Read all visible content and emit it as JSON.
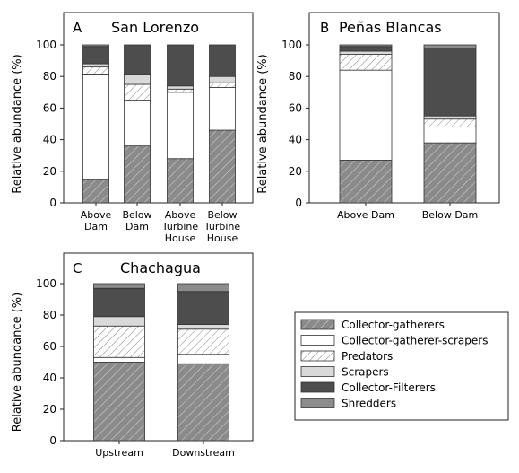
{
  "chart_data": [
    {
      "type": "bar",
      "stacked": true,
      "panel": "A",
      "title": "San Lorenzo",
      "ylabel": "Relative abundance (%)",
      "ylim": [
        0,
        100
      ],
      "yticks": [
        "0",
        "20",
        "40",
        "60",
        "80",
        "100"
      ],
      "categories": [
        [
          "Above",
          "Dam"
        ],
        [
          "Below",
          "Dam"
        ],
        [
          "Above",
          "Turbine",
          "House"
        ],
        [
          "Below",
          "Turbine",
          "House"
        ]
      ],
      "series": [
        {
          "name": "Collector-gatherers",
          "values": [
            15,
            36,
            28,
            46
          ]
        },
        {
          "name": "Collector-gatherer-scrapers",
          "values": [
            66,
            29,
            42,
            27
          ]
        },
        {
          "name": "Predators",
          "values": [
            5,
            10,
            2,
            3
          ]
        },
        {
          "name": "Scrapers",
          "values": [
            2,
            6,
            2,
            4
          ]
        },
        {
          "name": "Collector-Filterers",
          "values": [
            11,
            19,
            26,
            20
          ]
        },
        {
          "name": "Shredders",
          "values": [
            1,
            0,
            0,
            0
          ]
        }
      ]
    },
    {
      "type": "bar",
      "stacked": true,
      "panel": "B",
      "title": "Peñas Blancas",
      "ylabel": "Relative abundance (%)",
      "ylim": [
        0,
        100
      ],
      "yticks": [
        "0",
        "20",
        "40",
        "60",
        "80",
        "100"
      ],
      "categories": [
        [
          "Above Dam"
        ],
        [
          "Below Dam"
        ]
      ],
      "series": [
        {
          "name": "Collector-gatherers",
          "values": [
            27,
            38
          ]
        },
        {
          "name": "Collector-gatherer-scrapers",
          "values": [
            57,
            10
          ]
        },
        {
          "name": "Predators",
          "values": [
            10,
            5
          ]
        },
        {
          "name": "Scrapers",
          "values": [
            2,
            2
          ]
        },
        {
          "name": "Collector-Filterers",
          "values": [
            3,
            43
          ]
        },
        {
          "name": "Shredders",
          "values": [
            1,
            2
          ]
        }
      ]
    },
    {
      "type": "bar",
      "stacked": true,
      "panel": "C",
      "title": "Chachagua",
      "ylabel": "Relative abundance (%)",
      "ylim": [
        0,
        100
      ],
      "yticks": [
        "0",
        "20",
        "40",
        "60",
        "80",
        "100"
      ],
      "categories": [
        [
          "Upstream"
        ],
        [
          "Downstream"
        ]
      ],
      "series": [
        {
          "name": "Collector-gatherers",
          "values": [
            50,
            49
          ]
        },
        {
          "name": "Collector-gatherer-scrapers",
          "values": [
            3,
            6
          ]
        },
        {
          "name": "Predators",
          "values": [
            20,
            16
          ]
        },
        {
          "name": "Scrapers",
          "values": [
            6,
            3
          ]
        },
        {
          "name": "Collector-Filterers",
          "values": [
            18,
            21
          ]
        },
        {
          "name": "Shredders",
          "values": [
            3,
            5
          ]
        }
      ]
    }
  ],
  "legend": {
    "entries": [
      "Collector-gatherers",
      "Collector-gatherer-scrapers",
      "Predators",
      "Scrapers",
      "Collector-Filterers",
      "Shredders"
    ]
  },
  "styles": {
    "Collector-gatherers": {
      "fill": "#8a8a8a",
      "pattern": "hatch-dark"
    },
    "Collector-gatherer-scrapers": {
      "fill": "#ffffff",
      "pattern": "none"
    },
    "Predators": {
      "fill": "#ffffff",
      "pattern": "hatch-light"
    },
    "Scrapers": {
      "fill": "#d9d9d9",
      "pattern": "none"
    },
    "Collector-Filterers": {
      "fill": "#4d4d4d",
      "pattern": "none"
    },
    "Shredders": {
      "fill": "#8c8c8c",
      "pattern": "none"
    }
  }
}
